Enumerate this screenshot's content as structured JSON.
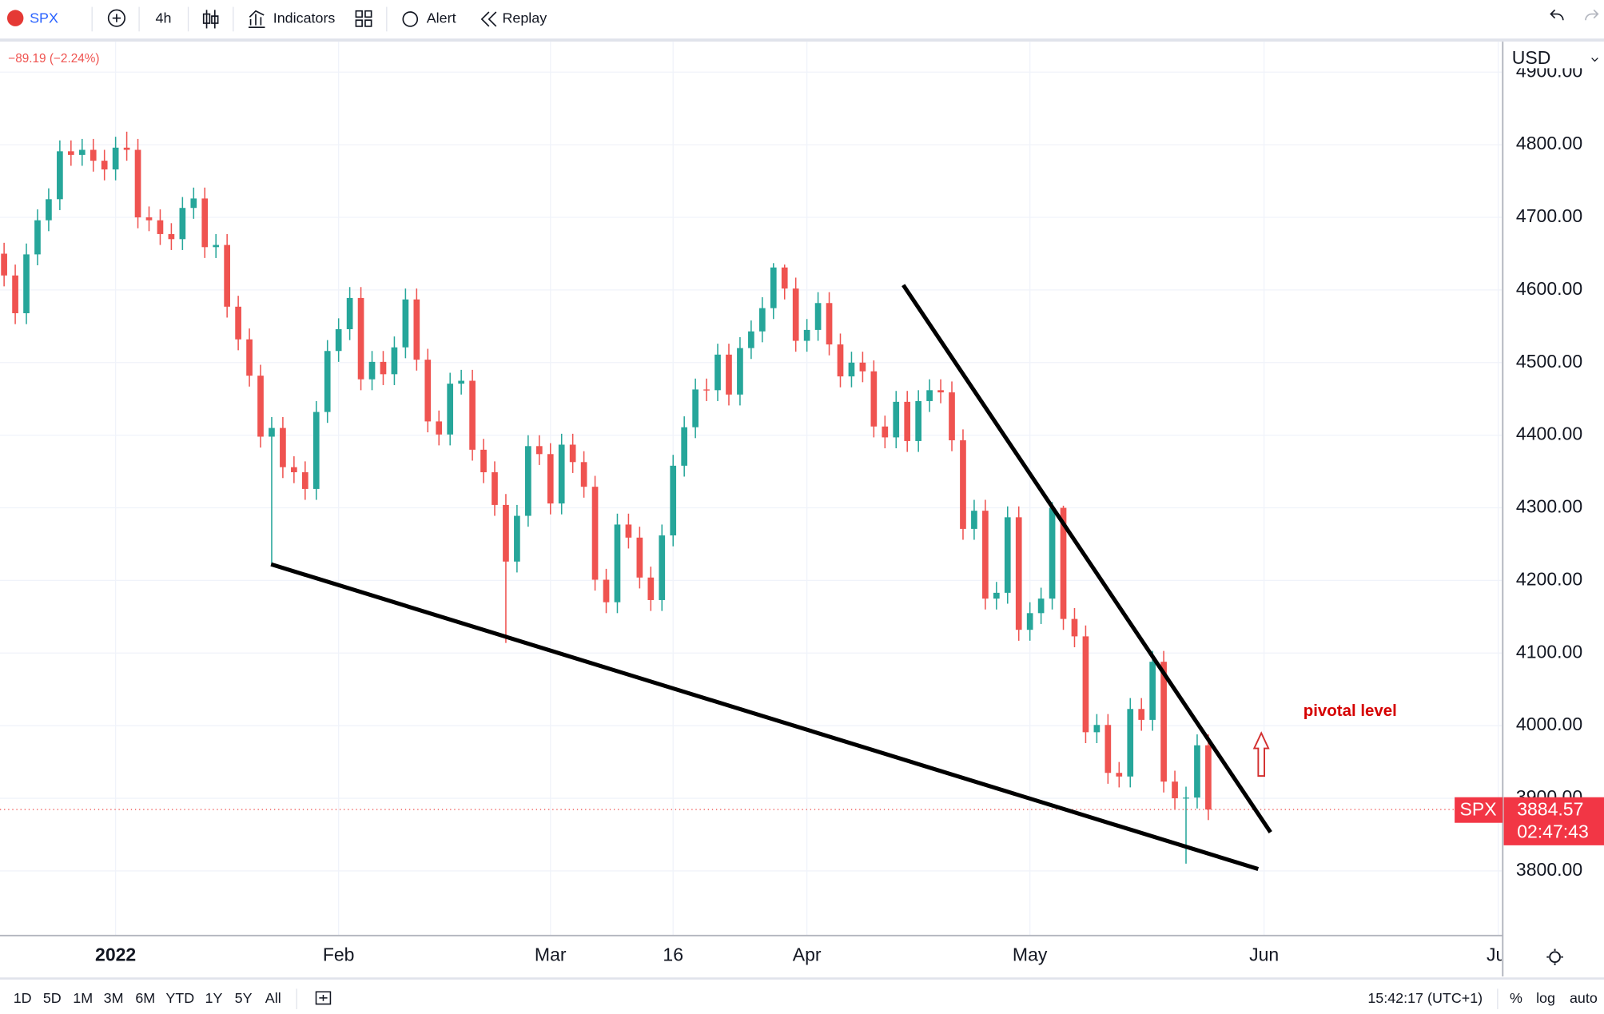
{
  "toolbar": {
    "symbol": "SPX",
    "interval": "4h",
    "buttons": [
      "Indicators",
      "Alert",
      "Replay"
    ]
  },
  "legend": {
    "change": "−89.19 (−2.24%)"
  },
  "chart_data": {
    "type": "candlestick",
    "currency": "USD",
    "categories": [
      null,
      null,
      null,
      null,
      null,
      null,
      null,
      null,
      null,
      null,
      "2022",
      null,
      null,
      null,
      null,
      null,
      null,
      null,
      null,
      null,
      null,
      null,
      null,
      null,
      null,
      null,
      null,
      null,
      null,
      null,
      "Feb",
      null,
      null,
      null,
      null,
      null,
      null,
      null,
      null,
      null,
      null,
      null,
      null,
      null,
      null,
      null,
      null,
      null,
      null,
      "Mar",
      null,
      null,
      null,
      null,
      null,
      null,
      null,
      null,
      null,
      null,
      "16",
      null,
      null,
      null,
      null,
      null,
      null,
      null,
      null,
      null,
      null,
      null,
      "Apr",
      null,
      null,
      null,
      null,
      null,
      null,
      null,
      null,
      null,
      null,
      null,
      null,
      null,
      null,
      null,
      null,
      null,
      null,
      null,
      "May",
      null,
      null,
      null,
      null,
      null,
      null,
      null,
      null,
      null,
      null,
      null,
      null,
      null,
      null,
      null,
      null,
      null,
      null,
      null,
      null,
      "Jun",
      null,
      null,
      null,
      null,
      null,
      null,
      null,
      null,
      null,
      null,
      null,
      null,
      null,
      null,
      null,
      null,
      null,
      null,
      null,
      null,
      "Jul"
    ],
    "open": [
      4650,
      4620,
      4568,
      4649,
      4696,
      4725,
      4791,
      4786,
      4793,
      4778,
      4766,
      4796,
      4793,
      4700,
      4696,
      4677,
      4670,
      4713,
      4726,
      4659,
      4662,
      4577,
      4532,
      4482,
      4398,
      4410,
      4356,
      4349,
      4326,
      4432,
      4516,
      4546,
      4589,
      4477,
      4501,
      4484,
      4521,
      4587,
      4504,
      4419,
      4401,
      4471,
      4475,
      4380,
      4349,
      4304,
      4226,
      4289,
      4385,
      4374,
      4306,
      4387,
      4363,
      4329,
      4201,
      4170,
      4277,
      4259,
      4204,
      4173,
      4262,
      4358,
      4411,
      4463,
      4462,
      4511,
      4456,
      4520,
      4543,
      4575,
      4631,
      4602,
      4530,
      4545,
      4582,
      4525,
      4481,
      4500,
      4488,
      4412,
      4397,
      4446,
      4392,
      4447,
      4462,
      4459,
      4393,
      4271,
      4296,
      4175,
      4183,
      4287,
      4132,
      4155,
      4175,
      4300,
      4147,
      4123,
      3991,
      4001,
      3935,
      3930,
      4023,
      4008,
      4088,
      3923,
      3900,
      3901,
      3973,
      null,
      null,
      null,
      null,
      null,
      null,
      null,
      null,
      null,
      null,
      null,
      null,
      null,
      null,
      null,
      null,
      null,
      null,
      null,
      null,
      null,
      null,
      null,
      null,
      null,
      null
    ],
    "high": [
      4665,
      4635,
      4664,
      4711,
      4740,
      4806,
      4806,
      4808,
      4808,
      4793,
      4811,
      4818,
      4808,
      4715,
      4711,
      4692,
      4728,
      4741,
      4741,
      4677,
      4677,
      4592,
      4547,
      4497,
      4425,
      4425,
      4371,
      4364,
      4447,
      4531,
      4561,
      4604,
      4604,
      4516,
      4516,
      4536,
      4602,
      4602,
      4519,
      4434,
      4486,
      4490,
      4490,
      4395,
      4364,
      4319,
      4304,
      4400,
      4400,
      4389,
      4402,
      4402,
      4378,
      4344,
      4216,
      4292,
      4292,
      4274,
      4219,
      4277,
      4373,
      4426,
      4478,
      4478,
      4526,
      4526,
      4535,
      4558,
      4590,
      4637,
      4635,
      4617,
      4560,
      4597,
      4597,
      4540,
      4515,
      4515,
      4503,
      4427,
      4461,
      4461,
      4462,
      4477,
      4477,
      4474,
      4408,
      4311,
      4311,
      4198,
      4302,
      4302,
      4170,
      4190,
      4308,
      4303,
      4162,
      4138,
      4016,
      4016,
      3950,
      4038,
      4038,
      4103,
      4103,
      3938,
      3916,
      3988,
      3988,
      null,
      null,
      null,
      null,
      null,
      null,
      null,
      null,
      null,
      null,
      null,
      null,
      null,
      null,
      null,
      null,
      null,
      null,
      null,
      null,
      null,
      null,
      null,
      null,
      null,
      null
    ],
    "low": [
      4605,
      4553,
      4553,
      4634,
      4681,
      4710,
      4771,
      4771,
      4763,
      4751,
      4751,
      4778,
      4685,
      4681,
      4662,
      4655,
      4655,
      4698,
      4644,
      4644,
      4562,
      4517,
      4467,
      4383,
      4222,
      4341,
      4334,
      4311,
      4311,
      4417,
      4501,
      4531,
      4462,
      4462,
      4469,
      4469,
      4506,
      4489,
      4404,
      4386,
      4386,
      4456,
      4365,
      4334,
      4289,
      4114,
      4211,
      4274,
      4359,
      4291,
      4291,
      4348,
      4314,
      4186,
      4155,
      4155,
      4244,
      4189,
      4158,
      4158,
      4247,
      4343,
      4396,
      4447,
      4447,
      4441,
      4441,
      4505,
      4528,
      4560,
      4587,
      4515,
      4515,
      4530,
      4510,
      4466,
      4466,
      4473,
      4397,
      4382,
      4382,
      4377,
      4377,
      4432,
      4444,
      4378,
      4256,
      4256,
      4160,
      4160,
      4168,
      4117,
      4117,
      4140,
      4160,
      4132,
      4108,
      3976,
      3976,
      3920,
      3915,
      3915,
      3993,
      3993,
      3908,
      3885,
      3810,
      3886,
      3870,
      null,
      null,
      null,
      null,
      null,
      null,
      null,
      null,
      null,
      null,
      null,
      null,
      null,
      null,
      null,
      null,
      null,
      null,
      null,
      null,
      null,
      null,
      null,
      null,
      null,
      null
    ],
    "close": [
      4620,
      4568,
      4649,
      4696,
      4725,
      4791,
      4786,
      4793,
      4778,
      4766,
      4796,
      4793,
      4700,
      4696,
      4677,
      4670,
      4713,
      4726,
      4659,
      4662,
      4577,
      4532,
      4482,
      4398,
      4410,
      4356,
      4349,
      4326,
      4432,
      4516,
      4546,
      4589,
      4477,
      4501,
      4484,
      4521,
      4587,
      4504,
      4419,
      4401,
      4471,
      4475,
      4380,
      4349,
      4304,
      4226,
      4289,
      4385,
      4374,
      4306,
      4387,
      4363,
      4329,
      4201,
      4170,
      4277,
      4259,
      4204,
      4173,
      4262,
      4358,
      4411,
      4463,
      4462,
      4511,
      4456,
      4520,
      4543,
      4575,
      4631,
      4602,
      4530,
      4545,
      4582,
      4525,
      4481,
      4500,
      4488,
      4412,
      4397,
      4446,
      4392,
      4447,
      4462,
      4459,
      4393,
      4271,
      4296,
      4175,
      4183,
      4287,
      4132,
      4155,
      4175,
      4300,
      4147,
      4123,
      3991,
      4001,
      3935,
      3930,
      4023,
      4008,
      4088,
      3923,
      3900,
      3901,
      3973,
      3884.57,
      null,
      null,
      null,
      null,
      null,
      null,
      null,
      null,
      null,
      null,
      null,
      null,
      null,
      null,
      null,
      null,
      null,
      null,
      null,
      null,
      null,
      null,
      null,
      null,
      null,
      null
    ],
    "ylim": [
      3711,
      4942
    ],
    "yticks": [
      {
        "value": 3800,
        "label": "3800.00"
      },
      {
        "value": 3900,
        "label": "3900.00"
      },
      {
        "value": 4000,
        "label": "4000.00"
      },
      {
        "value": 4100,
        "label": "4100.00"
      },
      {
        "value": 4200,
        "label": "4200.00"
      },
      {
        "value": 4300,
        "label": "4300.00"
      },
      {
        "value": 4400,
        "label": "4400.00"
      },
      {
        "value": 4500,
        "label": "4500.00"
      },
      {
        "value": 4600,
        "label": "4600.00"
      },
      {
        "value": 4700,
        "label": "4700.00"
      },
      {
        "value": 4800,
        "label": "4800.00"
      },
      {
        "value": 4900,
        "label": "4900.00"
      }
    ],
    "grid": true,
    "up_color": "#26a69a",
    "down_color": "#ef5350",
    "annotations": [
      "pivotal level"
    ],
    "last_price": {
      "symbol": "SPX",
      "countdown": "02:47:43"
    }
  },
  "bottom_bar": {
    "ranges": [
      "1D",
      "5D",
      "1M",
      "3M",
      "6M",
      "YTD",
      "1Y",
      "5Y",
      "All"
    ],
    "clock": "15:42:17 (UTC+1)",
    "scale_options": [
      "%",
      "log",
      "auto"
    ]
  }
}
